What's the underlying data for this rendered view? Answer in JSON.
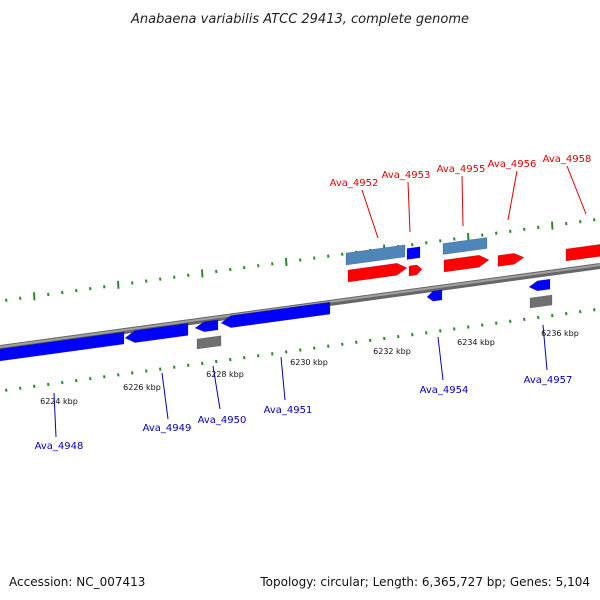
{
  "title": "Anabaena variabilis ATCC 29413, complete genome",
  "footer": {
    "accession": "Accession: NC_007413",
    "topology": "Topology: circular; Length: 6,365,727 bp; Genes: 5,104"
  },
  "colors": {
    "backbone": "#888888",
    "backbone_edge": "#666666",
    "forward_gene": "#ff0000",
    "forward_cds": "#4f86b8",
    "reverse_gene": "#0000ff",
    "reverse_other": "#707070",
    "tick": "#2a8a2a",
    "label_forward": "#dd0000",
    "label_reverse": "#0000bb"
  },
  "scale": {
    "unit": "kbp",
    "labels": [
      "6224 kbp",
      "6226 kbp",
      "6228 kbp",
      "6230 kbp",
      "6232 kbp",
      "6234 kbp",
      "6236 kbp"
    ]
  },
  "genes_forward": [
    "Ava_4952",
    "Ava_4953",
    "Ava_4955",
    "Ava_4956",
    "Ava_4958"
  ],
  "genes_reverse": [
    "Ava_4948",
    "Ava_4949",
    "Ava_4950",
    "Ava_4951",
    "Ava_4954",
    "Ava_4957"
  ]
}
